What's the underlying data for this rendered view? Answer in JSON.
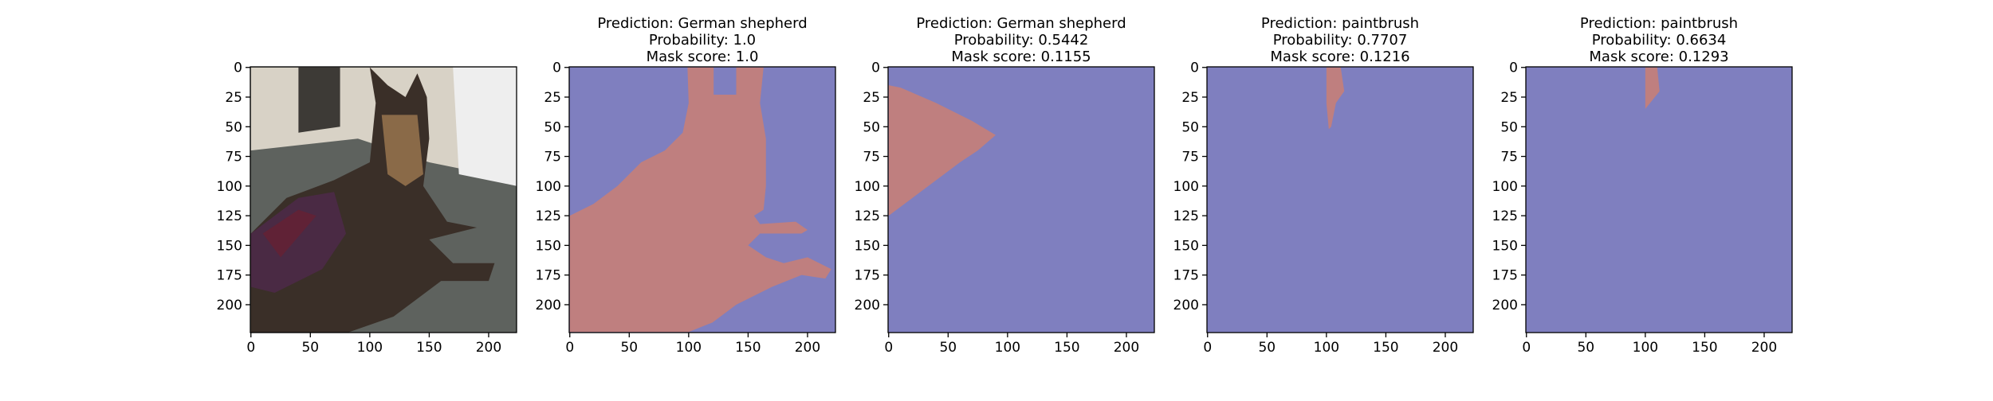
{
  "chart_data": [
    {
      "type": "photo",
      "xlim": [
        -0.5,
        223.5
      ],
      "ylim": [
        223.5,
        -0.5
      ],
      "xticks": [
        0,
        50,
        100,
        150,
        200
      ],
      "yticks": [
        0,
        25,
        50,
        75,
        100,
        125,
        150,
        175,
        200
      ]
    },
    {
      "type": "mask",
      "title": [
        "Prediction: German shepherd",
        "Probability: 1.0",
        "Mask score: 1.0"
      ],
      "xlim": [
        -0.5,
        223.5
      ],
      "ylim": [
        223.5,
        -0.5
      ],
      "xticks": [
        0,
        50,
        100,
        150,
        200
      ],
      "yticks": [
        0,
        25,
        50,
        75,
        100,
        125,
        150,
        175,
        200
      ],
      "background_color": "#7f7fbf",
      "mask_color": "#bf7f7f"
    },
    {
      "type": "mask",
      "title": [
        "Prediction: German shepherd",
        "Probability: 0.5442",
        "Mask score: 0.1155"
      ],
      "xlim": [
        -0.5,
        223.5
      ],
      "ylim": [
        223.5,
        -0.5
      ],
      "xticks": [
        0,
        50,
        100,
        150,
        200
      ],
      "yticks": [
        0,
        25,
        50,
        75,
        100,
        125,
        150,
        175,
        200
      ],
      "background_color": "#7f7fbf",
      "mask_color": "#bf7f7f"
    },
    {
      "type": "mask",
      "title": [
        "Prediction: paintbrush",
        "Probability: 0.7707",
        "Mask score: 0.1216"
      ],
      "xlim": [
        -0.5,
        223.5
      ],
      "ylim": [
        223.5,
        -0.5
      ],
      "xticks": [
        0,
        50,
        100,
        150,
        200
      ],
      "yticks": [
        0,
        25,
        50,
        75,
        100,
        125,
        150,
        175,
        200
      ],
      "background_color": "#7f7fbf",
      "mask_color": "#bf7f7f"
    },
    {
      "type": "mask",
      "title": [
        "Prediction: paintbrush",
        "Probability: 0.6634",
        "Mask score: 0.1293"
      ],
      "xlim": [
        -0.5,
        223.5
      ],
      "ylim": [
        223.5,
        -0.5
      ],
      "xticks": [
        0,
        50,
        100,
        150,
        200
      ],
      "yticks": [
        0,
        25,
        50,
        75,
        100,
        125,
        150,
        175,
        200
      ],
      "background_color": "#7f7fbf",
      "mask_color": "#bf7f7f"
    }
  ]
}
